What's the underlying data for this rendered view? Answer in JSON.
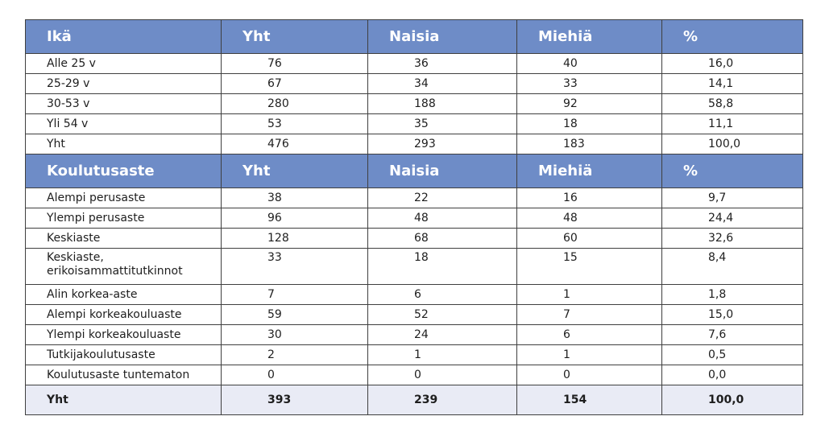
{
  "section_age": {
    "headers": [
      "Ikä",
      "Yht",
      "Naisia",
      "Miehiä",
      "%"
    ],
    "rows": [
      [
        "Alle 25 v",
        "76",
        "36",
        "40",
        "16,0"
      ],
      [
        "25-29 v",
        "67",
        "34",
        "33",
        "14,1"
      ],
      [
        "30-53 v",
        "280",
        "188",
        "92",
        "58,8"
      ],
      [
        "Yli 54 v",
        "53",
        "35",
        "18",
        "11,1"
      ],
      [
        "Yht",
        "476",
        "293",
        "183",
        "100,0"
      ]
    ]
  },
  "section_education": {
    "headers": [
      "Koulutusaste",
      "Yht",
      "Naisia",
      "Miehiä",
      "%"
    ],
    "rows": [
      [
        "Alempi perusaste",
        "38",
        "22",
        "16",
        "9,7"
      ],
      [
        "Ylempi perusaste",
        "96",
        "48",
        "48",
        "24,4"
      ],
      [
        "Keskiaste",
        "128",
        "68",
        "60",
        "32,6"
      ],
      [
        "Keskiaste, erikoisammattitutkinnot",
        "33",
        "18",
        "15",
        "8,4"
      ],
      [
        "Alin korkea-aste",
        "7",
        "6",
        "1",
        "1,8"
      ],
      [
        "Alempi korkeakouluaste",
        "59",
        "52",
        "7",
        "15,0"
      ],
      [
        "Ylempi korkeakouluaste",
        "30",
        "24",
        "6",
        "7,6"
      ],
      [
        "Tutkijakoulutusaste",
        "2",
        "1",
        "1",
        "0,5"
      ],
      [
        "Koulutusaste tuntematon",
        "0",
        "0",
        "0",
        "0,0"
      ]
    ],
    "total": [
      "Yht",
      "393",
      "239",
      "154",
      "100,0"
    ]
  },
  "colors": {
    "header_bg": "#6e8cc7",
    "header_text": "#ffffff",
    "total_bg": "#e9ebf5",
    "border": "#3f3f3f"
  }
}
